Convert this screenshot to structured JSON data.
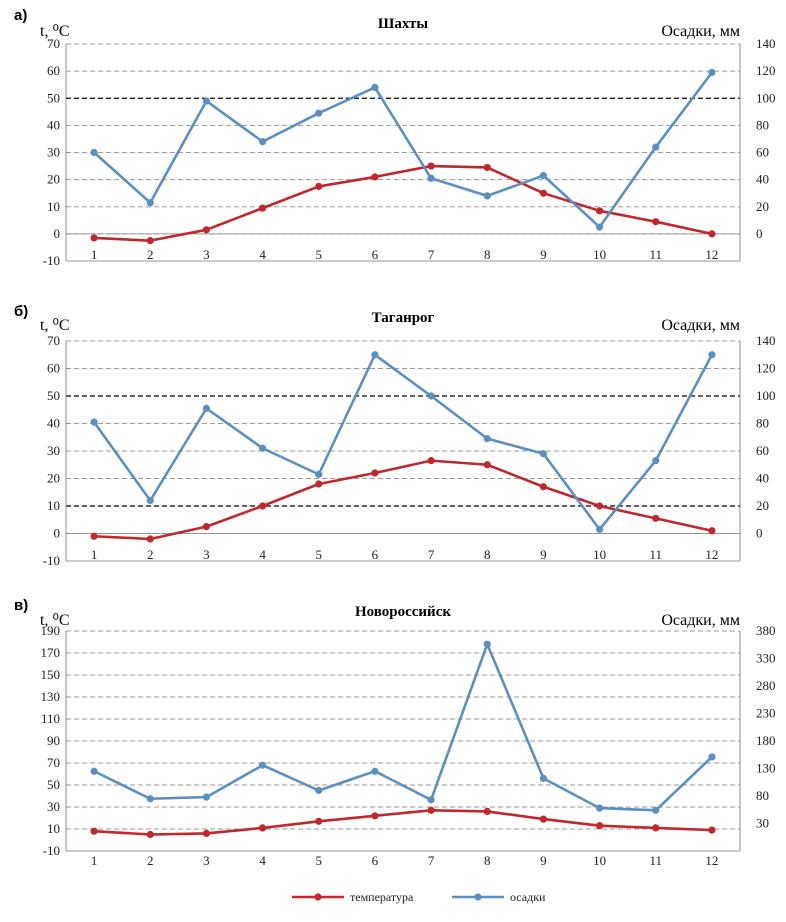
{
  "colors": {
    "temperature": "#c0282d",
    "precipitation": "#5b8fbf",
    "grid": "#9a9a9a",
    "dashed_major": "#000000"
  },
  "legend": {
    "temperature": "температура",
    "precipitation": "осадки",
    "placement": "bottom-center"
  },
  "chart_data": [
    {
      "type": "line",
      "panel_letter": "а)",
      "title": "Шахты",
      "ylabel_left": "t, ⁰C",
      "ylabel_right": "Осадки, мм",
      "categories": [
        "1",
        "2",
        "3",
        "4",
        "5",
        "6",
        "7",
        "8",
        "9",
        "10",
        "11",
        "12"
      ],
      "ylim_left": [
        -10,
        70
      ],
      "yticks_left": [
        "-10",
        "0",
        "10",
        "20",
        "30",
        "40",
        "50",
        "60",
        "70"
      ],
      "ylim_right": [
        -20,
        140
      ],
      "yticks_right": [
        "0",
        "20",
        "40",
        "60",
        "80",
        "100",
        "120",
        "140"
      ],
      "series": [
        {
          "name": "температура",
          "axis": "left",
          "values": [
            -1.5,
            -2.5,
            1.5,
            9.5,
            17.5,
            21,
            25,
            24.5,
            15,
            8.5,
            4.5,
            0
          ]
        },
        {
          "name": "осадки",
          "axis": "right",
          "values": [
            60,
            23,
            98,
            68,
            89,
            108,
            41,
            28,
            43,
            5,
            64,
            119
          ]
        }
      ],
      "grid": true
    },
    {
      "type": "line",
      "panel_letter": "б)",
      "title": "Таганрог",
      "ylabel_left": "t, ⁰C",
      "ylabel_right": "Осадки, мм",
      "categories": [
        "1",
        "2",
        "3",
        "4",
        "5",
        "6",
        "7",
        "8",
        "9",
        "10",
        "11",
        "12"
      ],
      "ylim_left": [
        -10,
        70
      ],
      "yticks_left": [
        "-10",
        "0",
        "10",
        "20",
        "30",
        "40",
        "50",
        "60",
        "70"
      ],
      "ylim_right": [
        -20,
        140
      ],
      "yticks_right": [
        "0",
        "20",
        "40",
        "60",
        "80",
        "100",
        "120",
        "140"
      ],
      "series": [
        {
          "name": "температура",
          "axis": "left",
          "values": [
            -1,
            -2,
            2.5,
            10,
            18,
            22,
            26.5,
            25,
            17,
            10,
            5.5,
            1
          ]
        },
        {
          "name": "осадки",
          "axis": "right",
          "values": [
            81,
            24,
            91,
            62,
            43,
            130,
            100,
            69,
            58,
            3,
            53,
            130
          ]
        }
      ],
      "grid": true
    },
    {
      "type": "line",
      "panel_letter": "в)",
      "title": "Новороссийск",
      "ylabel_left": "t, ⁰C",
      "ylabel_right": "Осадки, мм",
      "categories": [
        "1",
        "2",
        "3",
        "4",
        "5",
        "6",
        "7",
        "8",
        "9",
        "10",
        "11",
        "12"
      ],
      "ylim_left": [
        -10,
        190
      ],
      "yticks_left": [
        "-10",
        "10",
        "30",
        "50",
        "70",
        "90",
        "110",
        "130",
        "150",
        "170",
        "190"
      ],
      "ylim_right": [
        -20,
        380
      ],
      "yticks_right": [
        "30",
        "80",
        "130",
        "180",
        "230",
        "280",
        "330",
        "380"
      ],
      "series": [
        {
          "name": "температура",
          "axis": "left",
          "values": [
            8,
            5,
            6,
            11,
            17,
            22,
            27,
            26,
            19,
            13,
            11,
            9
          ]
        },
        {
          "name": "осадки",
          "axis": "right",
          "values": [
            125,
            75,
            78,
            136,
            90,
            125,
            73,
            356,
            112,
            58,
            54,
            151
          ]
        }
      ],
      "grid": true
    }
  ]
}
